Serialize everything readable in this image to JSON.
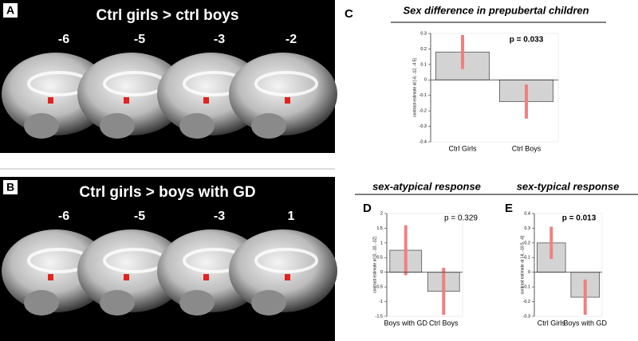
{
  "panels": [
    {
      "letter": "A",
      "title": "Ctrl girls > ctrl boys",
      "slice_labels": [
        "-6",
        "-5",
        "-3",
        "-2"
      ]
    },
    {
      "letter": "B",
      "title": "Ctrl girls > boys with GD",
      "slice_labels": [
        "-6",
        "-5",
        "-3",
        "1"
      ]
    }
  ],
  "chart_data": [
    {
      "type": "bar",
      "letter": "C",
      "title": "Sex difference in prepubertal children",
      "ylabel": "contrast estimate at [-6, -12, -4.5]",
      "annotation": "p = 0.033",
      "categories": [
        "Ctrl Girls",
        "Ctrl Boys"
      ],
      "values": [
        0.18,
        -0.14
      ],
      "errors": [
        0.11,
        0.11
      ],
      "color": "#d3d3d3",
      "error_color": "#f08080",
      "ylim": [
        -0.4,
        0.3
      ],
      "yticks": [
        -0.4,
        -0.3,
        -0.2,
        -0.1,
        0,
        0.1,
        0.2,
        0.3
      ]
    },
    {
      "type": "bar",
      "letter": "D",
      "title": "sex-atypical response",
      "ylabel": "contrast estimate at [0, -10, -12]",
      "annotation": "p = 0.329",
      "categories": [
        "Boys with GD",
        "Ctrl Boys"
      ],
      "values": [
        0.75,
        -0.65
      ],
      "errors": [
        0.85,
        0.8
      ],
      "color": "#d3d3d3",
      "error_color": "#f08080",
      "ylim": [
        -1.5,
        2
      ],
      "yticks": [
        -1.5,
        -1,
        -0.5,
        0,
        0.5,
        1,
        1.5,
        2
      ]
    },
    {
      "type": "bar",
      "letter": "E",
      "title": "sex-typical response",
      "ylabel": "contrast estimate at [-6, -10.5, -6]",
      "annotation": "p = 0.013",
      "categories": [
        "Ctrl Girls",
        "Boys with GD"
      ],
      "values": [
        0.2,
        -0.17
      ],
      "errors": [
        0.11,
        0.12
      ],
      "color": "#d3d3d3",
      "error_color": "#f08080",
      "ylim": [
        -0.3,
        0.4
      ],
      "yticks": [
        -0.3,
        -0.2,
        -0.1,
        0,
        0.1,
        0.2,
        0.3,
        0.4
      ]
    }
  ]
}
